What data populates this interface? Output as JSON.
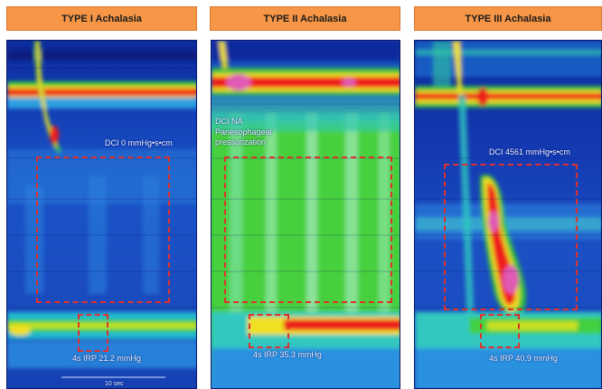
{
  "panels": [
    {
      "title": "TYPE I Achalasia",
      "dci": "DCI 0 mmHg•s•cm",
      "irp": "4s IRP 21.2 mmHg",
      "scale": "10 sec"
    },
    {
      "title": "TYPE II Achalasia",
      "dci": "DCI NA",
      "note": "Panesophageal pressurization",
      "irp": "4s IRP 35.3 mmHg"
    },
    {
      "title": "TYPE III Achalasia",
      "dci": "DCI 4561 mmHg•s•cm",
      "irp": "4s IRP 40.9 mmHg"
    }
  ],
  "colors": {
    "header": "#f79646",
    "box": "#e0312b",
    "low": "#1433a8",
    "mid": "#2fd23a",
    "high": "#ee1c1c",
    "peak": "#e05ab4"
  }
}
